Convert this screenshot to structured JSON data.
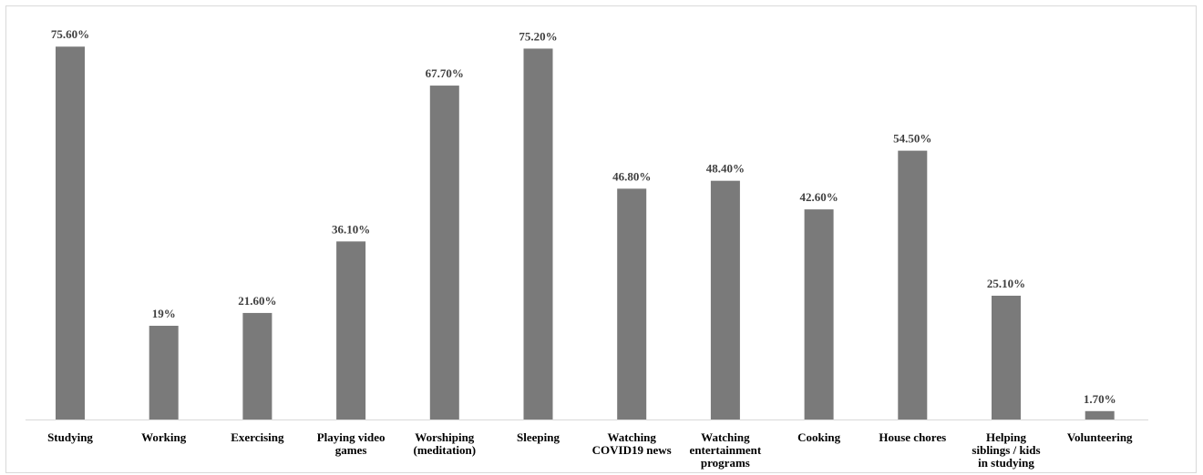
{
  "chart_data": {
    "type": "bar",
    "title": "",
    "xlabel": "",
    "ylabel": "",
    "ylim": [
      0,
      80
    ],
    "grid": false,
    "legend": "none",
    "bar_color": "#7a7a7a",
    "categories": [
      [
        "Studying"
      ],
      [
        "Working"
      ],
      [
        "Exercising"
      ],
      [
        "Playing video",
        "games"
      ],
      [
        "Worshiping",
        "(meditation)"
      ],
      [
        "Sleeping"
      ],
      [
        "Watching",
        "COVID19 news"
      ],
      [
        "Watching",
        "entertainment",
        "programs"
      ],
      [
        "Cooking"
      ],
      [
        "House chores"
      ],
      [
        "Helping",
        "siblings / kids",
        "in studying"
      ],
      [
        "Volunteering"
      ]
    ],
    "values": [
      75.6,
      19,
      21.6,
      36.1,
      67.7,
      75.2,
      46.8,
      48.4,
      42.6,
      54.5,
      25.1,
      1.7
    ],
    "data_labels": [
      "75.60%",
      "19%",
      "21.60%",
      "36.10%",
      "67.70%",
      "75.20%",
      "46.80%",
      "48.40%",
      "42.60%",
      "54.50%",
      "25.10%",
      "1.70%"
    ]
  }
}
